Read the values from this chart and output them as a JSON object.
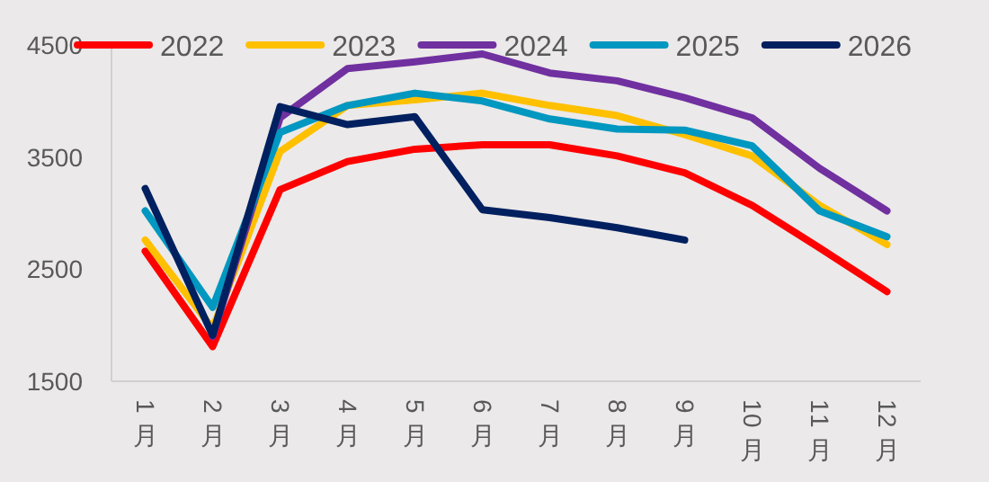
{
  "chart_data": {
    "type": "line",
    "categories": [
      "1月",
      "2月",
      "3月",
      "4月",
      "5月",
      "6月",
      "7月",
      "8月",
      "9月",
      "10月",
      "11月",
      "12月"
    ],
    "series": [
      {
        "name": "2022",
        "color": "#ff0000",
        "values": [
          2660,
          1810,
          3210,
          3460,
          3570,
          3610,
          3610,
          3510,
          3360,
          3070,
          2690,
          2300
        ]
      },
      {
        "name": "2023",
        "color": "#ffc000",
        "values": [
          2760,
          1970,
          3550,
          3960,
          4010,
          4070,
          3960,
          3870,
          3700,
          3510,
          3070,
          2720
        ]
      },
      {
        "name": "2024",
        "color": "#7030a0",
        "values": [
          null,
          1900,
          3850,
          4290,
          4350,
          4420,
          4250,
          4180,
          4030,
          3850,
          3400,
          3020
        ]
      },
      {
        "name": "2025",
        "color": "#0097c0",
        "values": [
          3020,
          2160,
          3720,
          3960,
          4070,
          4000,
          3840,
          3750,
          3740,
          3600,
          3020,
          2790
        ]
      },
      {
        "name": "2026",
        "color": "#002060",
        "values": [
          3220,
          1910,
          3950,
          3790,
          3860,
          3030,
          2960,
          2870,
          2760,
          null,
          null,
          null
        ]
      }
    ],
    "ylim": [
      1500,
      4500
    ],
    "yticks": [
      1500,
      2500,
      3500,
      4500
    ],
    "grid": false,
    "legend": "top",
    "marker": "none",
    "line_style": "solid"
  }
}
